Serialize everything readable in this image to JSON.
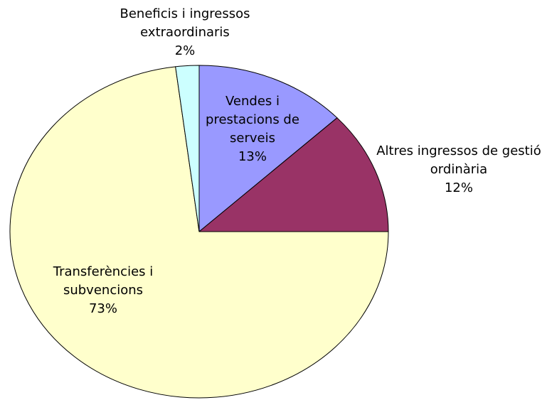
{
  "chart_data": {
    "type": "pie",
    "categories": [
      "Vendes i prestacions de serveis",
      "Altres ingressos de gestió ordinària",
      "Transferències i subvencions",
      "Beneficis i ingressos extraordinaris"
    ],
    "values": [
      13,
      12,
      73,
      2
    ],
    "value_labels": [
      "13%",
      "12%",
      "73%",
      "2%"
    ],
    "colors": [
      "#9999ff",
      "#993366",
      "#ffffcc",
      "#ccffff"
    ]
  }
}
